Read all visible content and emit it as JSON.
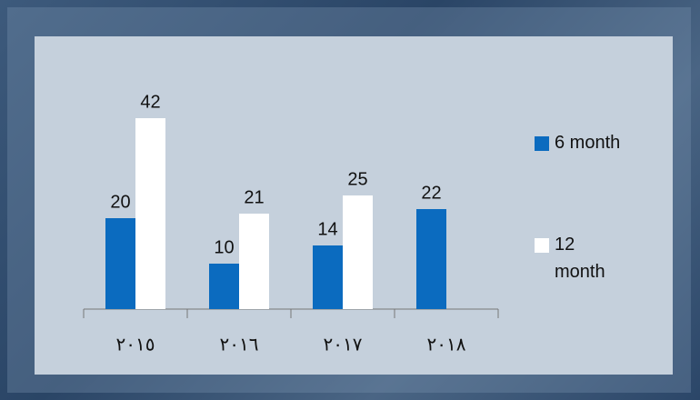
{
  "chart_data": {
    "type": "bar",
    "categories": [
      "٢٠١٥",
      "٢٠١٦",
      "٢٠١٧",
      "٢٠١٨"
    ],
    "series": [
      {
        "name": "6 month",
        "color": "#0b6bbf",
        "values": [
          20,
          10,
          14,
          22
        ]
      },
      {
        "name": "12 month",
        "color": "#ffffff",
        "values": [
          42,
          21,
          25,
          null
        ]
      }
    ],
    "ylim": [
      0,
      48
    ],
    "legend": "right"
  }
}
